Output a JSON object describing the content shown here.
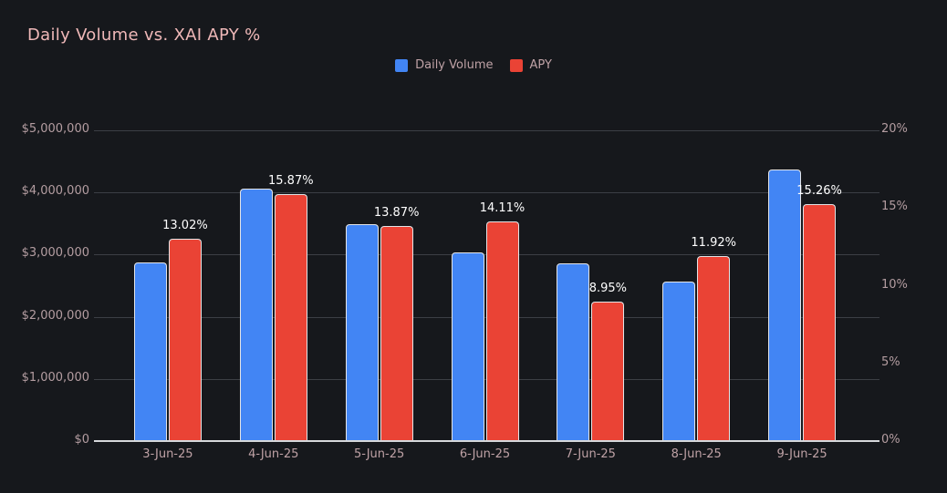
{
  "page": {
    "background_color": "#16181c"
  },
  "header": {
    "title": "Daily Volume vs. XAI APY %",
    "title_color": "#efb8b8"
  },
  "chart_data": {
    "type": "bar",
    "title": "Daily Volume vs. XAI APY %",
    "legend_position": "top",
    "grid": true,
    "categories": [
      "3-Jun-25",
      "4-Jun-25",
      "5-Jun-25",
      "6-Jun-25",
      "7-Jun-25",
      "8-Jun-25",
      "9-Jun-25"
    ],
    "series": [
      {
        "name": "Daily Volume",
        "axis": "left",
        "color": "#4285f4",
        "values": [
          2870000,
          4060000,
          3490000,
          3040000,
          2860000,
          2570000,
          4370000
        ]
      },
      {
        "name": "APY",
        "axis": "right",
        "color": "#ea4335",
        "values": [
          13.02,
          15.87,
          13.87,
          14.11,
          8.95,
          11.92,
          15.26
        ],
        "data_labels": [
          "13.02%",
          "15.87%",
          "13.87%",
          "14.11%",
          "8.95%",
          "11.92%",
          "15.26%"
        ]
      }
    ],
    "left_axis": {
      "min": 0,
      "max": 5000000,
      "ticks": [
        0,
        1000000,
        2000000,
        3000000,
        4000000,
        5000000
      ],
      "tick_labels": [
        "$0",
        "$1,000,000",
        "$2,000,000",
        "$3,000,000",
        "$4,000,000",
        "$5,000,000"
      ]
    },
    "right_axis": {
      "min": 0,
      "max": 20,
      "ticks": [
        0,
        5,
        10,
        15,
        20
      ],
      "tick_labels": [
        "0%",
        "5%",
        "10%",
        "15%",
        "20%"
      ]
    },
    "colors": {
      "gridline": "#3c3f45",
      "axis_line": "#d6d8db",
      "axis_text": "#b49da1",
      "data_label_text": "#ffffff"
    }
  }
}
